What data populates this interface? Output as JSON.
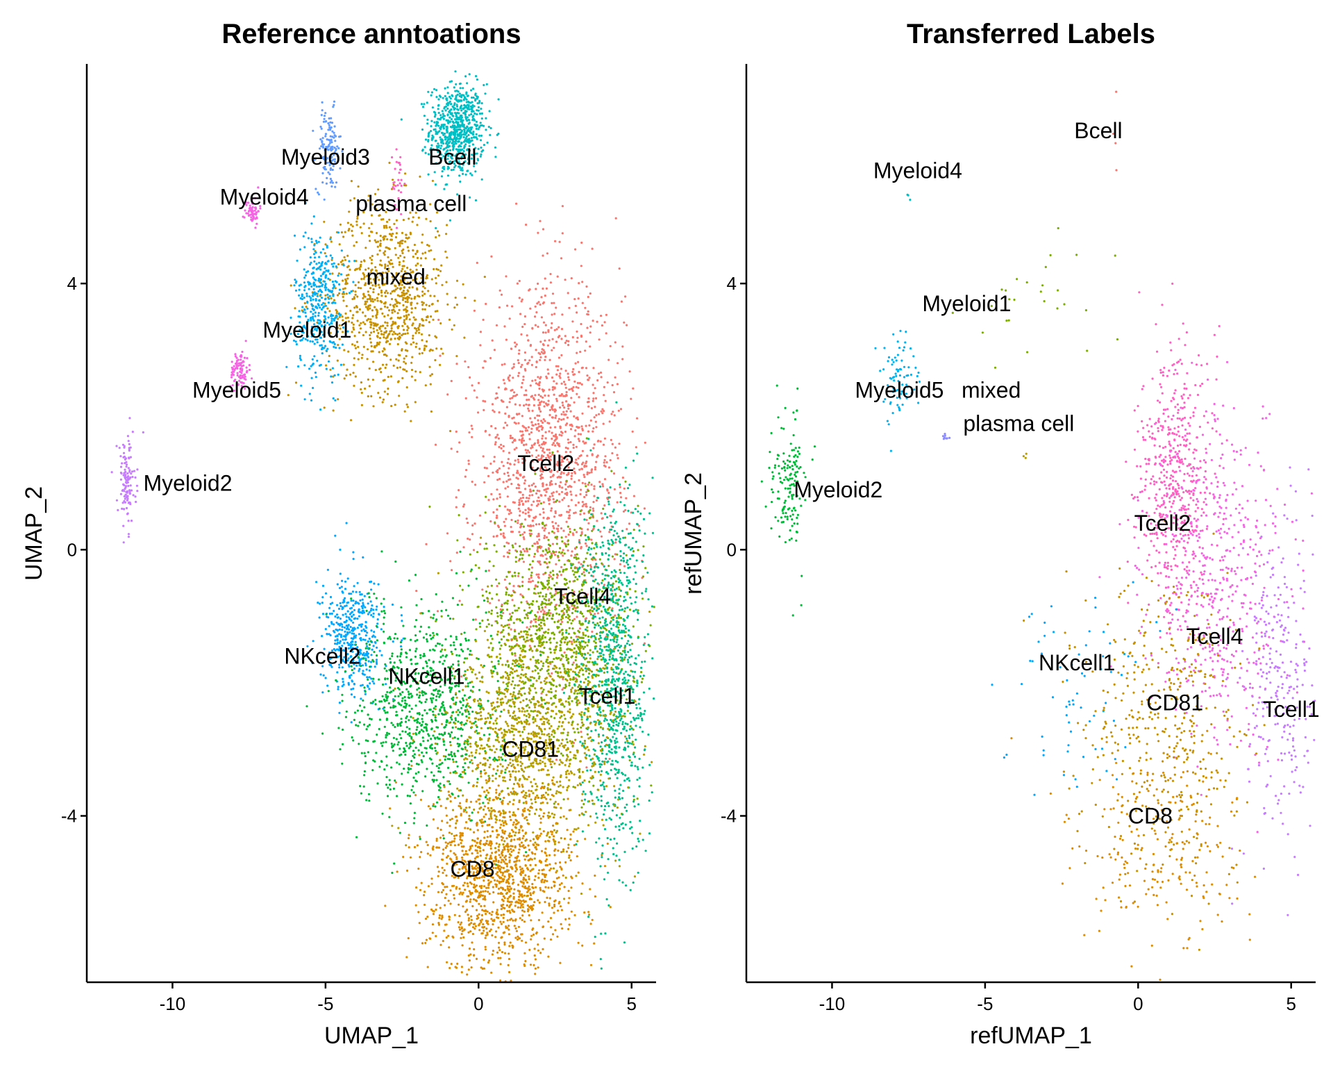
{
  "colors": {
    "Bcell": "#F8766D",
    "CD8": "#DE8C00",
    "CD81": "#B79F00",
    "Myeloid1": "#7CAE00",
    "Myeloid2": "#00BA38",
    "Myeloid3": "#00C08B",
    "Myeloid4": "#00BFC4",
    "Myeloid5": "#00B4F0",
    "NKcell1": "#619CFF",
    "NKcell2": "#C77CFF",
    "Tcell1": "#F564E3",
    "Tcell2": "#FF64B0",
    "Tcell4": "#00C1A3",
    "mixed": "#C79100",
    "plasma cell": "#FF6C91",
    "ref_Bcell": "#00BFC4",
    "ref_CD8": "#DE8C00",
    "ref_CD81": "#B79F00",
    "ref_Myeloid1": "#00B0F6",
    "ref_Myeloid2": "#C77CFF",
    "ref_Myeloid3": "#619CFF",
    "ref_Myeloid4": "#F564E3",
    "ref_Myeloid5": "#F564E3",
    "ref_NKcell1": "#00BA38",
    "ref_NKcell2": "#00A9FF",
    "ref_Tcell1": "#00C08B",
    "ref_Tcell2": "#F8766D",
    "ref_Tcell4": "#7CAE00",
    "ref_mixed": "#C79100",
    "ref_plasma cell": "#FF61C3",
    "tr_Bcell": "#F8766D",
    "tr_CD8": "#DE8C00",
    "tr_CD81": "#C79100",
    "tr_Myeloid1": "#7CAE00",
    "tr_Myeloid2": "#00BA38",
    "tr_Myeloid4": "#00BFC4",
    "tr_Myeloid5": "#00B4F0",
    "tr_NKcell1": "#00A9FF",
    "tr_Tcell1": "#C77CFF",
    "tr_Tcell2": "#FF61C3",
    "tr_Tcell4": "#F564E3",
    "tr_mixed": "#B79F00",
    "tr_plasma cell": "#8C8CFF"
  },
  "chart_data": [
    {
      "type": "scatter",
      "title": "Reference anntoations",
      "xlabel": "UMAP_1",
      "ylabel": "UMAP_2",
      "xlim": [
        -12.8,
        5.8
      ],
      "ylim": [
        -6.5,
        7.3
      ],
      "xticks": [
        -10,
        -5,
        0,
        5
      ],
      "yticks": [
        -4,
        0,
        4
      ],
      "grid": false,
      "legend": "none",
      "clusters": [
        {
          "name": "Bcell",
          "color_key": "ref_Bcell",
          "center": [
            -0.7,
            6.3
          ],
          "spread": [
            0.45,
            0.35
          ],
          "n": 700
        },
        {
          "name": "Myeloid3",
          "color_key": "ref_Myeloid3",
          "center": [
            -4.9,
            6.0
          ],
          "spread": [
            0.2,
            0.3
          ],
          "n": 140
        },
        {
          "name": "Myeloid4",
          "color_key": "ref_Myeloid4",
          "center": [
            -7.4,
            5.1
          ],
          "spread": [
            0.12,
            0.1
          ],
          "n": 60
        },
        {
          "name": "plasma cell",
          "color_key": "ref_plasma cell",
          "center": [
            -2.6,
            5.5
          ],
          "spread": [
            0.1,
            0.3
          ],
          "n": 30
        },
        {
          "name": "mixed",
          "color_key": "ref_mixed",
          "center": [
            -3.0,
            3.8
          ],
          "spread": [
            1.0,
            0.7
          ],
          "n": 900
        },
        {
          "name": "Myeloid1",
          "color_key": "ref_Myeloid1",
          "center": [
            -5.2,
            3.7
          ],
          "spread": [
            0.4,
            0.55
          ],
          "n": 380
        },
        {
          "name": "Myeloid5",
          "color_key": "ref_Myeloid5",
          "center": [
            -7.8,
            2.7
          ],
          "spread": [
            0.15,
            0.15
          ],
          "n": 90
        },
        {
          "name": "Myeloid2",
          "color_key": "ref_Myeloid2",
          "center": [
            -11.5,
            1.0
          ],
          "spread": [
            0.15,
            0.35
          ],
          "n": 120
        },
        {
          "name": "Tcell2",
          "color_key": "ref_Tcell2",
          "center": [
            2.3,
            1.3
          ],
          "spread": [
            1.2,
            1.3
          ],
          "n": 1500
        },
        {
          "name": "Tcell4",
          "color_key": "ref_Tcell4",
          "center": [
            2.6,
            -1.3
          ],
          "spread": [
            1.3,
            0.9
          ],
          "n": 1200
        },
        {
          "name": "Tcell1",
          "color_key": "ref_Tcell1",
          "center": [
            4.4,
            -1.9
          ],
          "spread": [
            0.55,
            1.4
          ],
          "n": 900
        },
        {
          "name": "NKcell2",
          "color_key": "ref_NKcell2",
          "center": [
            -4.1,
            -1.3
          ],
          "spread": [
            0.5,
            0.45
          ],
          "n": 450
        },
        {
          "name": "NKcell1",
          "color_key": "ref_NKcell1",
          "center": [
            -1.7,
            -2.4
          ],
          "spread": [
            1.2,
            0.75
          ],
          "n": 900
        },
        {
          "name": "CD81",
          "color_key": "ref_CD81",
          "center": [
            1.7,
            -2.9
          ],
          "spread": [
            1.4,
            0.8
          ],
          "n": 1100
        },
        {
          "name": "CD8",
          "color_key": "ref_CD8",
          "center": [
            0.7,
            -4.9
          ],
          "spread": [
            1.2,
            0.7
          ],
          "n": 1300
        }
      ],
      "labels": [
        {
          "text": "Bcell",
          "x": -0.85,
          "y": 5.9
        },
        {
          "text": "Myeloid3",
          "x": -5.0,
          "y": 5.9
        },
        {
          "text": "Myeloid4",
          "x": -7.0,
          "y": 5.3
        },
        {
          "text": "plasma cell",
          "x": -2.2,
          "y": 5.2
        },
        {
          "text": "mixed",
          "x": -2.7,
          "y": 4.1
        },
        {
          "text": "Myeloid1",
          "x": -5.6,
          "y": 3.3
        },
        {
          "text": "Myeloid5",
          "x": -7.9,
          "y": 2.4
        },
        {
          "text": "Myeloid2",
          "x": -9.5,
          "y": 1.0
        },
        {
          "text": "Tcell2",
          "x": 2.2,
          "y": 1.3
        },
        {
          "text": "Tcell4",
          "x": 3.4,
          "y": -0.7
        },
        {
          "text": "NKcell2",
          "x": -5.1,
          "y": -1.6
        },
        {
          "text": "NKcell1",
          "x": -1.7,
          "y": -1.9
        },
        {
          "text": "Tcell1",
          "x": 4.2,
          "y": -2.2
        },
        {
          "text": "CD81",
          "x": 1.7,
          "y": -3.0
        },
        {
          "text": "CD8",
          "x": -0.2,
          "y": -4.8
        }
      ]
    },
    {
      "type": "scatter",
      "title": "Transferred Labels",
      "xlabel": "refUMAP_1",
      "ylabel": "refUMAP_2",
      "xlim": [
        -12.8,
        5.8
      ],
      "ylim": [
        -6.5,
        7.3
      ],
      "xticks": [
        -10,
        -5,
        0,
        5
      ],
      "yticks": [
        -4,
        0,
        4
      ],
      "grid": false,
      "legend": "none",
      "clusters": [
        {
          "name": "Bcell",
          "color_key": "tr_Bcell",
          "center": [
            -0.9,
            6.5
          ],
          "spread": [
            0.1,
            0.4
          ],
          "n": 4
        },
        {
          "name": "Myeloid4",
          "color_key": "tr_Myeloid4",
          "center": [
            -7.5,
            5.3
          ],
          "spread": [
            0.05,
            0.05
          ],
          "n": 3
        },
        {
          "name": "Myeloid1",
          "color_key": "tr_Myeloid1",
          "center": [
            -3.0,
            3.8
          ],
          "spread": [
            1.5,
            0.7
          ],
          "n": 28
        },
        {
          "name": "Myeloid5",
          "color_key": "tr_Myeloid5",
          "center": [
            -7.8,
            2.6
          ],
          "spread": [
            0.25,
            0.3
          ],
          "n": 80
        },
        {
          "name": "plasma cell",
          "color_key": "tr_plasma cell",
          "center": [
            -6.3,
            1.7
          ],
          "spread": [
            0.06,
            0.06
          ],
          "n": 8
        },
        {
          "name": "mixed",
          "color_key": "tr_mixed",
          "center": [
            -3.7,
            1.4
          ],
          "spread": [
            0.05,
            0.05
          ],
          "n": 3
        },
        {
          "name": "Myeloid2",
          "color_key": "tr_Myeloid2",
          "center": [
            -11.4,
            1.0
          ],
          "spread": [
            0.3,
            0.5
          ],
          "n": 150
        },
        {
          "name": "Tcell2",
          "color_key": "tr_Tcell2",
          "center": [
            1.2,
            1.0
          ],
          "spread": [
            0.6,
            1.0
          ],
          "n": 520
        },
        {
          "name": "Tcell4",
          "color_key": "tr_Tcell4",
          "center": [
            2.6,
            -0.5
          ],
          "spread": [
            1.1,
            1.2
          ],
          "n": 520
        },
        {
          "name": "Tcell1",
          "color_key": "tr_Tcell1",
          "center": [
            4.6,
            -2.0
          ],
          "spread": [
            0.6,
            1.2
          ],
          "n": 260
        },
        {
          "name": "NKcell1",
          "color_key": "tr_NKcell1",
          "center": [
            -2.0,
            -2.0
          ],
          "spread": [
            1.2,
            0.8
          ],
          "n": 70
        },
        {
          "name": "CD81",
          "color_key": "tr_CD81",
          "center": [
            1.0,
            -2.6
          ],
          "spread": [
            1.3,
            1.1
          ],
          "n": 420
        },
        {
          "name": "CD8",
          "color_key": "tr_CD8",
          "center": [
            0.7,
            -4.5
          ],
          "spread": [
            1.4,
            0.8
          ],
          "n": 220
        }
      ],
      "labels": [
        {
          "text": "Bcell",
          "x": -1.3,
          "y": 6.3
        },
        {
          "text": "Myeloid4",
          "x": -7.2,
          "y": 5.7
        },
        {
          "text": "Myeloid1",
          "x": -5.6,
          "y": 3.7
        },
        {
          "text": "Myeloid5",
          "x": -7.8,
          "y": 2.4
        },
        {
          "text": "mixed",
          "x": -4.8,
          "y": 2.4
        },
        {
          "text": "plasma cell",
          "x": -3.9,
          "y": 1.9
        },
        {
          "text": "Myeloid2",
          "x": -9.8,
          "y": 0.9
        },
        {
          "text": "Tcell2",
          "x": 0.8,
          "y": 0.4
        },
        {
          "text": "NKcell1",
          "x": -2.0,
          "y": -1.7
        },
        {
          "text": "Tcell4",
          "x": 2.5,
          "y": -1.3
        },
        {
          "text": "CD81",
          "x": 1.2,
          "y": -2.3
        },
        {
          "text": "Tcell1",
          "x": 5.0,
          "y": -2.4
        },
        {
          "text": "CD8",
          "x": 0.4,
          "y": -4.0
        }
      ]
    }
  ]
}
